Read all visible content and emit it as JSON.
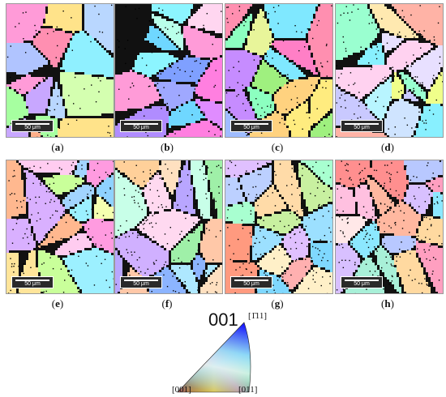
{
  "panels": [
    {
      "id": "a",
      "caption_letter": "a",
      "scale": "50 μm",
      "grain_colors": [
        "#b9d7ff",
        "#ff9bd8",
        "#a6ffa0",
        "#ffe38a",
        "#c8a7ff",
        "#8ff0ff",
        "#ffb08a",
        "#d4ffb0",
        "#ff8fb1",
        "#b0c4ff"
      ]
    },
    {
      "id": "b",
      "caption_letter": "b",
      "scale": "50 μm",
      "grain_colors": [
        "#ff7fe0",
        "#b08cff",
        "#6fd7ff",
        "#9fa8ff",
        "#ff9bd8",
        "#8cf5ff",
        "#ffd6f0",
        "#7fa0ff",
        "#e08cff",
        "#b9ffea"
      ]
    },
    {
      "id": "c",
      "caption_letter": "c",
      "scale": "50 μm",
      "grain_colors": [
        "#ff8fb0",
        "#9ff07f",
        "#ffd27f",
        "#7fe8ff",
        "#c68cff",
        "#ffec7f",
        "#8cffc0",
        "#ff7fc6",
        "#e8f59a",
        "#9fbcff"
      ]
    },
    {
      "id": "d",
      "caption_letter": "d",
      "scale": "50 μm",
      "grain_colors": [
        "#88f0ff",
        "#e8e0ff",
        "#ffb3a6",
        "#f0ff8a",
        "#c9c9ff",
        "#9affd0",
        "#ffd2f0",
        "#ffe9b0",
        "#cfe4ff",
        "#b8f5ff"
      ]
    },
    {
      "id": "e",
      "caption_letter": "e",
      "scale": "50 μm",
      "grain_colors": [
        "#ffb88f",
        "#a2d4ff",
        "#ff9be0",
        "#c9ff9a",
        "#ffe59a",
        "#9cf0ff",
        "#d9b0ff",
        "#ffccf0",
        "#8fd2ff",
        "#f5ffb0"
      ]
    },
    {
      "id": "f",
      "caption_letter": "f",
      "scale": "50 μm",
      "grain_colors": [
        "#ffc8a8",
        "#8cb4ff",
        "#ffe0c0",
        "#9ff0a8",
        "#b9a6ff",
        "#c8ffe8",
        "#ffd9f0",
        "#aee8ff",
        "#d0b0ff",
        "#ffd09a"
      ]
    },
    {
      "id": "g",
      "caption_letter": "g",
      "scale": "50 μm",
      "grain_colors": [
        "#ff9a7f",
        "#9ce0ff",
        "#bcd0ff",
        "#ffdba8",
        "#a8ffd0",
        "#fff0c8",
        "#7fd8ff",
        "#e0c0ff",
        "#c8f0a0",
        "#ffb0b0"
      ]
    },
    {
      "id": "h",
      "caption_letter": "h",
      "scale": "50 μm",
      "grain_colors": [
        "#ff8f8f",
        "#ffc0e0",
        "#8ce8ff",
        "#ffd9a0",
        "#b8c8ff",
        "#ff9fc0",
        "#a8f0d8",
        "#ffb8a0",
        "#d8c0ff",
        "#ffe8e8"
      ]
    }
  ],
  "legend": {
    "title": "001",
    "corner_top": "[1̄11]",
    "corner_left": "[001]",
    "corner_right": "[011]"
  }
}
